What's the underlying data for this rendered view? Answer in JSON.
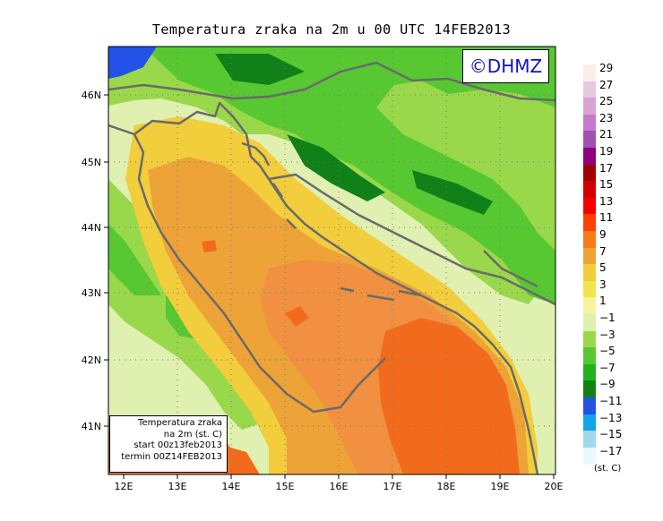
{
  "title": "Temperatura zraka na 2m u 00 UTC 14FEB2013",
  "logo_text": "©DHMZ",
  "info_box": {
    "line1": "Temperatura zraka",
    "line2": "na 2m (st. C)",
    "line3": "start 00z13feb2013",
    "line4": "termin 00Z14FEB2013"
  },
  "lat_labels": [
    "46N",
    "45N",
    "44N",
    "43N",
    "42N",
    "41N"
  ],
  "lon_labels": [
    "12E",
    "13E",
    "14E",
    "15E",
    "16E",
    "17E",
    "18E",
    "19E",
    "20E"
  ],
  "legend": {
    "unit": "(st. C)",
    "labels": [
      "29",
      "27",
      "25",
      "23",
      "21",
      "19",
      "17",
      "15",
      "13",
      "11",
      "9",
      "7",
      "5",
      "3",
      "1",
      "−1",
      "−3",
      "−5",
      "−7",
      "−9",
      "−11",
      "−13",
      "−15",
      "−17"
    ],
    "colors": [
      "#fbeee4",
      "#e4c9e0",
      "#d9a3d4",
      "#c87ac9",
      "#a050b0",
      "#900078",
      "#a00000",
      "#d20000",
      "#f50000",
      "#ff4000",
      "#f87a1a",
      "#eda338",
      "#f2cd3c",
      "#f2e44c",
      "#f7f3a0",
      "#e0f0b0",
      "#9ad84b",
      "#58c832",
      "#20b020",
      "#108018",
      "#2252e8",
      "#10a4e8",
      "#a0d8ec",
      "#e8faff"
    ]
  },
  "field_colors": {
    "ocean_hot": "#f26b1c",
    "ocean_warm": "#f09040",
    "ocean_mild": "#eda338",
    "coast_yellow": "#f2cd3c",
    "land_pale": "#e0f0b0",
    "land_green": "#9ad84b",
    "land_mid_green": "#58c832",
    "land_dark_green": "#108018",
    "land_blue": "#2252e8"
  }
}
